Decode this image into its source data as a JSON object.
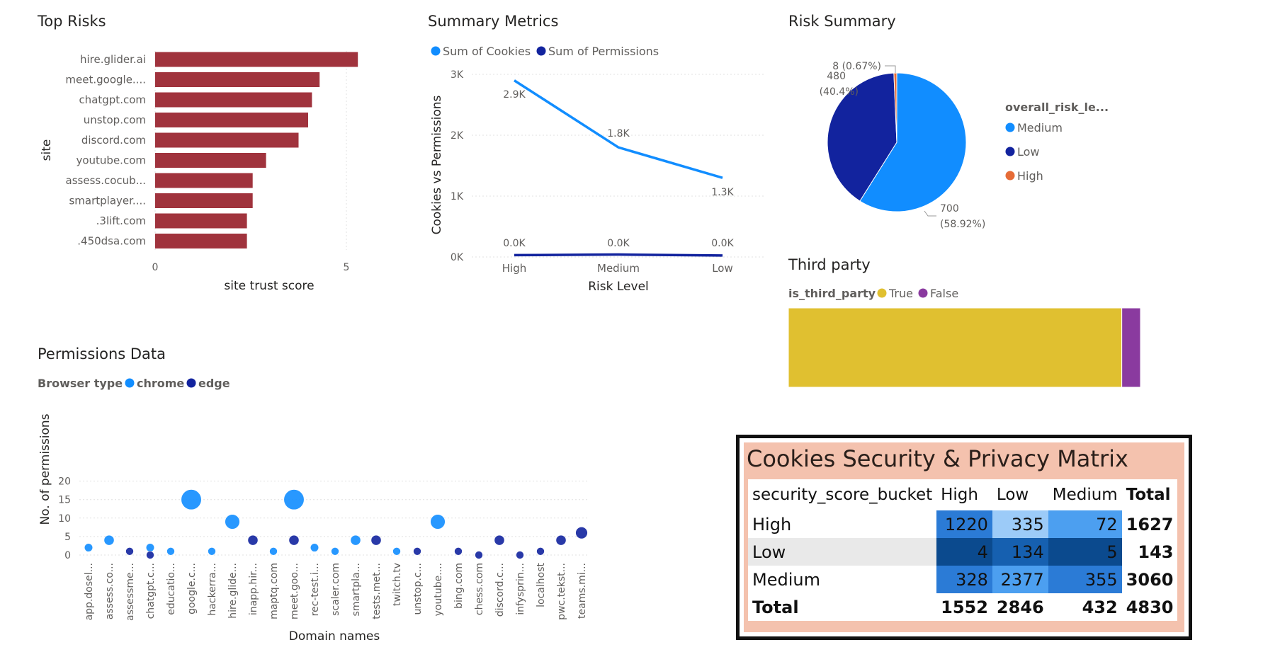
{
  "top_risks": {
    "title": "Top Risks",
    "chart_data": {
      "type": "bar",
      "orientation": "horizontal",
      "ylabel": "site",
      "xlabel": "site trust score",
      "xlim": [
        0,
        5.3
      ],
      "xticks": [
        "0",
        "5"
      ],
      "categories": [
        "hire.glider.ai",
        "meet.google....",
        "chatgpt.com",
        "unstop.com",
        "discord.com",
        "youtube.com",
        "assess.cocub...",
        "smartplayer....",
        ".3lift.com",
        ".450dsa.com"
      ],
      "values": [
        5.3,
        4.3,
        4.1,
        4.0,
        3.75,
        2.9,
        2.55,
        2.55,
        2.4,
        2.4
      ],
      "bar_color": "#a0333d",
      "grid": true
    }
  },
  "summary_metrics": {
    "title": "Summary Metrics",
    "chart_data": {
      "type": "line",
      "xlabel": "Risk Level",
      "ylabel": "Cookies vs Permissions",
      "categories": [
        "High",
        "Medium",
        "Low"
      ],
      "ylim": [
        0,
        3000
      ],
      "yticks": [
        "0K",
        "1K",
        "2K",
        "3K"
      ],
      "series": [
        {
          "name": "Sum of Cookies",
          "color": "#118dff",
          "values": [
            2900,
            1800,
            1300
          ],
          "labels": [
            "2.9K",
            "1.8K",
            "1.3K"
          ]
        },
        {
          "name": "Sum of Permissions",
          "color": "#12239e",
          "values": [
            30,
            40,
            25
          ],
          "labels": [
            "0.0K",
            "0.0K",
            "0.0K"
          ]
        }
      ],
      "grid": true
    }
  },
  "risk_summary": {
    "title": "Risk Summary",
    "chart_data": {
      "type": "pie",
      "legend_title": "overall_risk_le...",
      "legend_position": "right",
      "slices": [
        {
          "name": "Medium",
          "value": 700,
          "label_value": "700",
          "label_pct": "(58.92%)",
          "color": "#118dff"
        },
        {
          "name": "Low",
          "value": 480,
          "label_value": "480",
          "label_pct": "(40.4%)",
          "color": "#12239e"
        },
        {
          "name": "High",
          "value": 8,
          "label_value": "8 (0.67%)",
          "label_pct": "",
          "color": "#e66c37"
        }
      ]
    }
  },
  "third_party": {
    "title": "Third party",
    "chart_data": {
      "type": "bar",
      "orientation": "stacked-horizontal-100",
      "legend_title": "is_third_party",
      "series": [
        {
          "name": "True",
          "value": 0.947,
          "color": "#e0c030"
        },
        {
          "name": "False",
          "value": 0.053,
          "color": "#8a3a9f"
        }
      ]
    }
  },
  "permissions_data": {
    "title": "Permissions Data",
    "chart_data": {
      "type": "scatter",
      "legend_title": "Browser type",
      "xlabel": "Domain names",
      "ylabel": "No. of permissions",
      "ylim": [
        0,
        20
      ],
      "yticks": [
        "0",
        "5",
        "10",
        "15",
        "20"
      ],
      "categories": [
        "app.dosel...",
        "assess.co...",
        "assessme...",
        "chatgpt.c...",
        "educatio...",
        "google.c...",
        "hackerra...",
        "hire.glide...",
        "inapp.hir...",
        "maptq.com",
        "meet.goo...",
        "rec-test.i...",
        "scaler.com",
        "smartpla...",
        "tests.met...",
        "twitch.tv",
        "unstop.c...",
        "youtube....",
        "bing.com",
        "chess.com",
        "discord.c...",
        "infysprin...",
        "localhost",
        "pwc.tekst...",
        "teams.mi..."
      ],
      "series": [
        {
          "name": "chrome",
          "color": "#118dff",
          "points": [
            {
              "x": "app.dosel...",
              "y": 2
            },
            {
              "x": "assess.co...",
              "y": 4
            },
            {
              "x": "chatgpt.c...",
              "y": 2
            },
            {
              "x": "educatio...",
              "y": 1
            },
            {
              "x": "google.c...",
              "y": 15
            },
            {
              "x": "hackerra...",
              "y": 1
            },
            {
              "x": "hire.glide...",
              "y": 9
            },
            {
              "x": "maptq.com",
              "y": 1
            },
            {
              "x": "meet.goo...",
              "y": 15
            },
            {
              "x": "rec-test.i...",
              "y": 2
            },
            {
              "x": "scaler.com",
              "y": 1
            },
            {
              "x": "smartpla...",
              "y": 4
            },
            {
              "x": "twitch.tv",
              "y": 1
            },
            {
              "x": "youtube....",
              "y": 9
            }
          ]
        },
        {
          "name": "edge",
          "color": "#12239e",
          "points": [
            {
              "x": "assessme...",
              "y": 1
            },
            {
              "x": "chatgpt.c...",
              "y": 0
            },
            {
              "x": "inapp.hir...",
              "y": 4
            },
            {
              "x": "meet.goo...",
              "y": 4
            },
            {
              "x": "tests.met...",
              "y": 4
            },
            {
              "x": "unstop.c...",
              "y": 1
            },
            {
              "x": "bing.com",
              "y": 1
            },
            {
              "x": "chess.com",
              "y": 0
            },
            {
              "x": "discord.c...",
              "y": 4
            },
            {
              "x": "infysprin...",
              "y": 0
            },
            {
              "x": "localhost",
              "y": 1
            },
            {
              "x": "pwc.tekst...",
              "y": 4
            },
            {
              "x": "teams.mi...",
              "y": 6
            }
          ]
        }
      ],
      "grid": true
    }
  },
  "matrix": {
    "title": "Cookies Security & Privacy Matrix",
    "chart_data": {
      "type": "table",
      "corner_header": "security_score_bucket",
      "columns": [
        "High",
        "Low",
        "Medium",
        "Total"
      ],
      "rows": [
        {
          "label": "High",
          "values": [
            1220,
            335,
            72
          ],
          "total": 1627
        },
        {
          "label": "Low",
          "values": [
            4,
            134,
            5
          ],
          "total": 143
        },
        {
          "label": "Medium",
          "values": [
            328,
            2377,
            355
          ],
          "total": 3060
        }
      ],
      "total_row": {
        "label": "Total",
        "values": [
          1552,
          2846,
          432
        ],
        "total": 4830
      },
      "heat_colors": [
        "#0b4a8e",
        "#1660b0",
        "#2b7bd6",
        "#4c9ff0",
        "#9ccbf8"
      ]
    }
  }
}
